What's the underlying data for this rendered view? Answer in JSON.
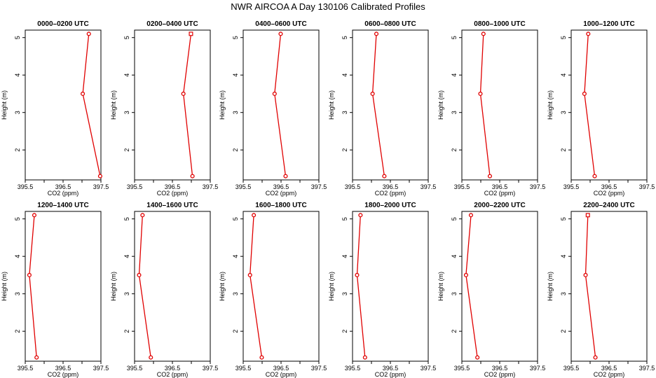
{
  "title": "NWR AIRCOA A  Day 130106  Calibrated Profiles",
  "colors": {
    "series": "#e00000",
    "frame": "#000000",
    "background": "#ffffff"
  },
  "chart_data": {
    "type": "line",
    "layout": "2x6 grid of small multiples",
    "xlabel": "CO2 (ppm)",
    "ylabel": "Height (m)",
    "xlim": [
      395.5,
      397.5
    ],
    "ylim": [
      1.2,
      5.2
    ],
    "xticks": [
      395.5,
      396.0,
      396.5,
      397.0,
      397.5
    ],
    "xtick_labels": [
      "395.5",
      "",
      "396.5",
      "",
      "397.5"
    ],
    "yticks": [
      2,
      3,
      4,
      5
    ],
    "ytick_labels": [
      "2",
      "3",
      "4",
      "5"
    ],
    "heights": [
      5.1,
      3.5,
      1.3
    ],
    "panels": [
      {
        "title": "0000–0200 UTC",
        "x": [
          397.18,
          397.02,
          397.48
        ],
        "top_marker": "circle"
      },
      {
        "title": "0200–0400 UTC",
        "x": [
          396.99,
          396.79,
          397.03
        ],
        "top_marker": "square"
      },
      {
        "title": "0400–0600 UTC",
        "x": [
          396.49,
          396.33,
          396.62
        ],
        "top_marker": "circle"
      },
      {
        "title": "0600–0800 UTC",
        "x": [
          396.13,
          396.03,
          396.34
        ],
        "top_marker": "circle"
      },
      {
        "title": "0800–1000 UTC",
        "x": [
          396.07,
          395.99,
          396.24
        ],
        "top_marker": "circle"
      },
      {
        "title": "1000–1200 UTC",
        "x": [
          395.95,
          395.85,
          396.12
        ],
        "top_marker": "circle"
      },
      {
        "title": "1200–1400 UTC",
        "x": [
          395.74,
          395.61,
          395.8
        ],
        "top_marker": "circle"
      },
      {
        "title": "1400–1600 UTC",
        "x": [
          395.71,
          395.62,
          395.93
        ],
        "top_marker": "circle"
      },
      {
        "title": "1600–1800 UTC",
        "x": [
          395.78,
          395.68,
          395.99
        ],
        "top_marker": "circle"
      },
      {
        "title": "1800–2000 UTC",
        "x": [
          395.71,
          395.62,
          395.83
        ],
        "top_marker": "circle"
      },
      {
        "title": "2000–2200 UTC",
        "x": [
          395.74,
          395.61,
          395.91
        ],
        "top_marker": "circle"
      },
      {
        "title": "2200–2400 UTC",
        "x": [
          395.94,
          395.88,
          396.14
        ],
        "top_marker": "square"
      }
    ]
  }
}
